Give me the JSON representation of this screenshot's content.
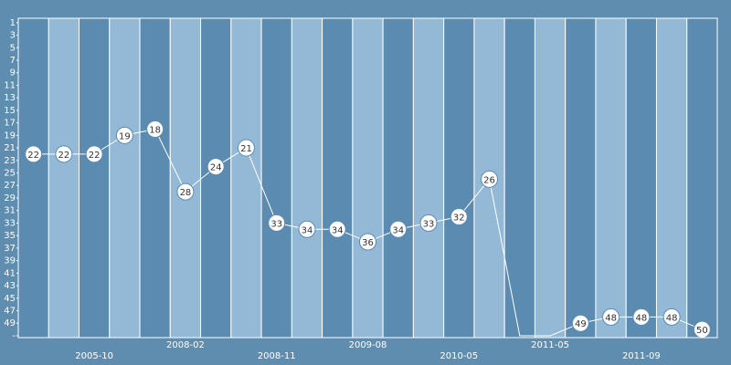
{
  "chart_data": {
    "type": "line",
    "categories": [
      null,
      null,
      "2005-10",
      null,
      null,
      "2008-02",
      null,
      null,
      "2008-11",
      null,
      null,
      "2009-08",
      null,
      null,
      "2010-05",
      null,
      null,
      "2011-05",
      null,
      null,
      "2011-09",
      null,
      null
    ],
    "values": [
      22,
      22,
      22,
      19,
      18,
      28,
      24,
      21,
      33,
      34,
      34,
      36,
      34,
      33,
      32,
      26,
      null,
      null,
      49,
      48,
      48,
      48,
      50
    ],
    "color": "#ffffff",
    "y_inverted": true,
    "ylim": [
      0.3,
      51.3
    ],
    "yticks": [
      1,
      3,
      5,
      7,
      9,
      11,
      13,
      15,
      17,
      19,
      21,
      23,
      25,
      27,
      29,
      31,
      33,
      35,
      37,
      39,
      41,
      43,
      45,
      47,
      49,
      {
        "value": 51,
        "label": "-"
      }
    ],
    "band_colors": [
      "#5b8bb0",
      "#93b9d6"
    ]
  }
}
